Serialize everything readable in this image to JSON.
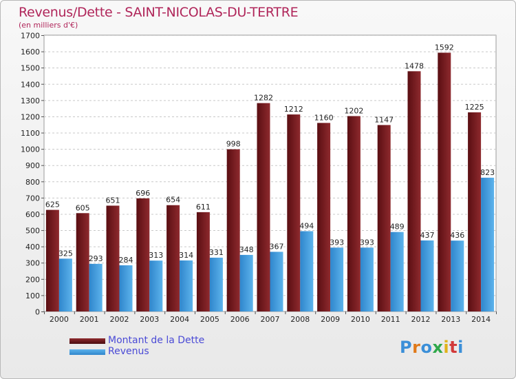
{
  "title": "Revenus/Dette - SAINT-NICOLAS-DU-TERTRE",
  "subtitle": "(en milliers d'€)",
  "logo": {
    "text": "Proxiti"
  },
  "colors": {
    "dette": "#7a1a1e",
    "revenus": "#3f9ade"
  },
  "chart_data": {
    "type": "bar",
    "categories": [
      "2000",
      "2001",
      "2002",
      "2003",
      "2004",
      "2005",
      "2006",
      "2007",
      "2008",
      "2009",
      "2010",
      "2011",
      "2012",
      "2013",
      "2014"
    ],
    "series": [
      {
        "name": "Montant de la Dette",
        "values": [
          625,
          605,
          651,
          696,
          654,
          611,
          998,
          1282,
          1212,
          1160,
          1202,
          1147,
          1478,
          1592,
          1225
        ]
      },
      {
        "name": "Revenus",
        "values": [
          325,
          293,
          284,
          313,
          314,
          331,
          348,
          367,
          494,
          393,
          393,
          489,
          437,
          436,
          823
        ]
      }
    ],
    "ylim": [
      0,
      1700
    ],
    "yticks": [
      0,
      100,
      200,
      300,
      400,
      500,
      600,
      700,
      800,
      900,
      1000,
      1100,
      1200,
      1300,
      1400,
      1500,
      1600,
      1700
    ],
    "grid": true,
    "legend": "bottom-left"
  }
}
